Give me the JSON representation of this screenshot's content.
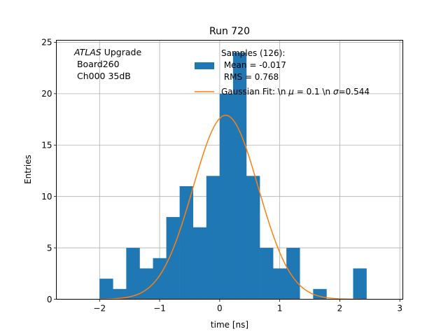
{
  "chart_data": {
    "type": "bar",
    "title": "Run 720",
    "xlabel": "time [ns]",
    "ylabel": "Entries",
    "xlim": [
      -2.72,
      3.05
    ],
    "ylim": [
      0,
      25.2
    ],
    "xticks": [
      -2,
      -1,
      0,
      1,
      2,
      3
    ],
    "yticks": [
      0,
      5,
      10,
      15,
      20,
      25
    ],
    "grid": true,
    "bar_color": "#1f77b4",
    "fit_color": "#ff7f0e",
    "bins": {
      "edges": [
        -2.0,
        -1.778,
        -1.556,
        -1.333,
        -1.111,
        -0.889,
        -0.667,
        -0.444,
        -0.222,
        0.0,
        0.222,
        0.444,
        0.667,
        0.889,
        1.111,
        1.333,
        1.556,
        1.778,
        2.0,
        2.222,
        2.444
      ],
      "counts": [
        2,
        1,
        5,
        3,
        4,
        8,
        11,
        7,
        12,
        20,
        24,
        12,
        5,
        3,
        5,
        0,
        1,
        0,
        0,
        3
      ]
    },
    "gaussian_fit": {
      "amplitude": 17.9,
      "mean": 0.1,
      "sigma": 0.544,
      "x_range": [
        -2.0,
        2.35
      ]
    },
    "annotation": {
      "line1_italic": "ATLAS",
      "line1_rest": " Upgrade",
      "line2": " Board260",
      "line3": " Ch000 35dB"
    },
    "legend": {
      "placement": "top-right",
      "hist_lines": [
        "Samples (126):",
        " Mean = -0.017",
        " RMS = 0.768"
      ],
      "fit_prefix": "Gaussian Fit: \\n ",
      "fit_mu_sym": "μ",
      "fit_mid": " = 0.1 \\n ",
      "fit_sigma_sym": "σ",
      "fit_suffix": "=0.544"
    }
  }
}
